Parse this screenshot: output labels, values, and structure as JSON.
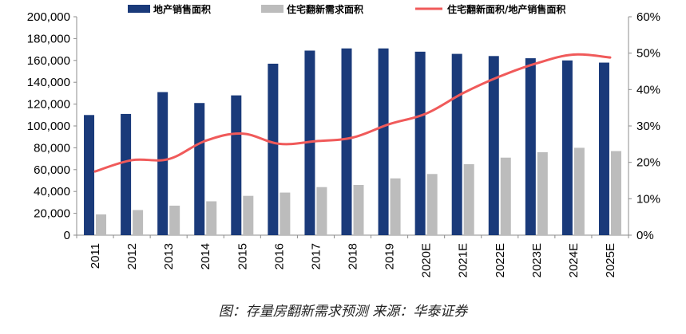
{
  "caption": "图：存量房翻新需求预测 来源：华泰证券",
  "colors": {
    "sales_area": "#1a3a7a",
    "renovation_demand": "#bcbcbc",
    "ratio_line": "#f05a5a",
    "axis": "#8c8c8c"
  },
  "chart_data": {
    "type": "bar",
    "categories": [
      "2011",
      "2012",
      "2013",
      "2014",
      "2015",
      "2016",
      "2017",
      "2018",
      "2019",
      "2020E",
      "2021E",
      "2022E",
      "2023E",
      "2024E",
      "2025E"
    ],
    "series": [
      {
        "name": "地产销售面积",
        "type": "bar",
        "axis": "left",
        "values": [
          110000,
          111000,
          131000,
          121000,
          128000,
          157000,
          169000,
          171000,
          171000,
          168000,
          166000,
          164000,
          162000,
          160000,
          158000
        ]
      },
      {
        "name": "住宅翻新需求面积",
        "type": "bar",
        "axis": "left",
        "values": [
          19000,
          23000,
          27000,
          31000,
          36000,
          39000,
          44000,
          46000,
          52000,
          56000,
          65000,
          71000,
          76000,
          80000,
          77000
        ]
      },
      {
        "name": "住宅翻新面积/地产销售面积",
        "type": "line",
        "axis": "right",
        "values": [
          0.175,
          0.206,
          0.209,
          0.259,
          0.279,
          0.251,
          0.258,
          0.268,
          0.305,
          0.334,
          0.39,
          0.436,
          0.472,
          0.496,
          0.488
        ]
      }
    ],
    "y_left": {
      "min": 0,
      "max": 200000,
      "step": 20000,
      "tick_labels": [
        "0",
        "20,000",
        "40,000",
        "60,000",
        "80,000",
        "100,000",
        "120,000",
        "140,000",
        "160,000",
        "180,000",
        "200,000"
      ]
    },
    "y_right": {
      "min": 0,
      "max": 0.6,
      "step": 0.1,
      "tick_labels": [
        "0%",
        "10%",
        "20%",
        "30%",
        "40%",
        "50%",
        "60%"
      ]
    },
    "legend_position": "top",
    "grid": false
  }
}
